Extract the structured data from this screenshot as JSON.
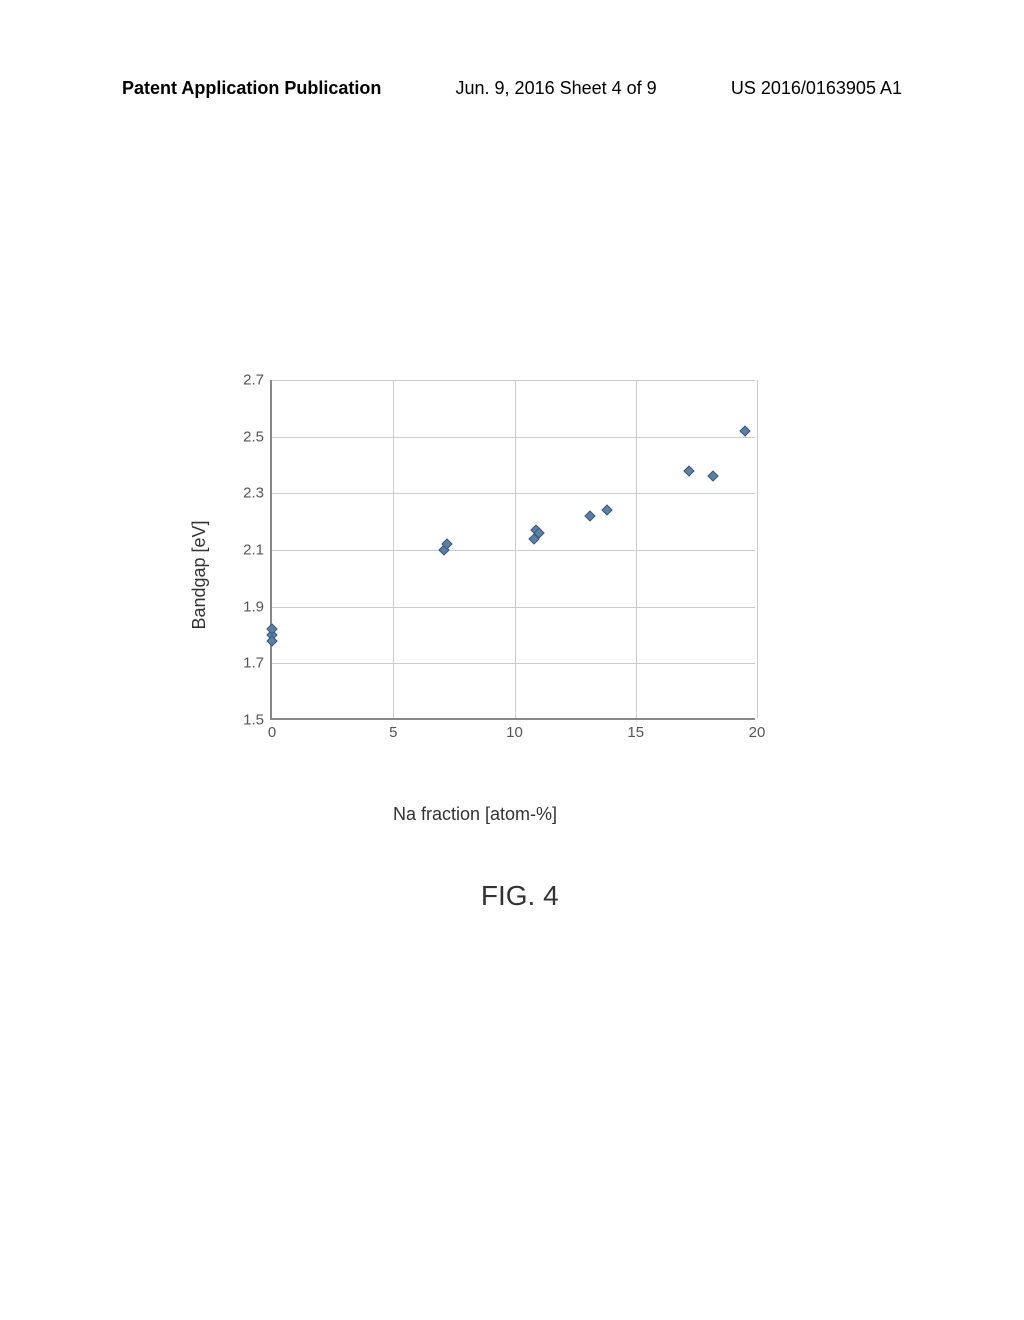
{
  "header": {
    "left": "Patent Application Publication",
    "center": "Jun. 9, 2016  Sheet 4 of 9",
    "right": "US 2016/0163905 A1"
  },
  "chart": {
    "type": "scatter",
    "ylabel": "Bandgap [eV]",
    "xlabel": "Na fraction [atom-%]",
    "label_fontsize": 18,
    "tick_fontsize": 15,
    "xlim": [
      0,
      20
    ],
    "ylim": [
      1.5,
      2.7
    ],
    "xtick_step": 5,
    "ytick_step": 0.2,
    "xticks": [
      0,
      5,
      10,
      15,
      20
    ],
    "yticks": [
      1.5,
      1.7,
      1.9,
      2.1,
      2.3,
      2.5,
      2.7
    ],
    "background_color": "#ffffff",
    "grid_color": "#cccccc",
    "axis_color": "#888888",
    "marker_color": "#5b7fa8",
    "marker_border": "#3a5a7a",
    "marker_style": "diamond",
    "marker_size": 8,
    "data_points": [
      {
        "x": 0.0,
        "y": 1.8
      },
      {
        "x": 0.0,
        "y": 1.82
      },
      {
        "x": 0.0,
        "y": 1.78
      },
      {
        "x": 7.1,
        "y": 2.1
      },
      {
        "x": 7.2,
        "y": 2.12
      },
      {
        "x": 10.8,
        "y": 2.14
      },
      {
        "x": 10.9,
        "y": 2.17
      },
      {
        "x": 11.0,
        "y": 2.16
      },
      {
        "x": 13.1,
        "y": 2.22
      },
      {
        "x": 13.8,
        "y": 2.24
      },
      {
        "x": 17.2,
        "y": 2.38
      },
      {
        "x": 18.2,
        "y": 2.36
      },
      {
        "x": 19.5,
        "y": 2.52
      }
    ]
  },
  "figure_label": "FIG. 4"
}
